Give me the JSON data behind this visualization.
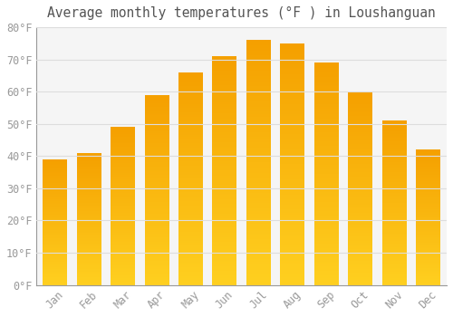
{
  "title": "Average monthly temperatures (°F ) in Loushanguan",
  "months": [
    "Jan",
    "Feb",
    "Mar",
    "Apr",
    "May",
    "Jun",
    "Jul",
    "Aug",
    "Sep",
    "Oct",
    "Nov",
    "Dec"
  ],
  "values": [
    39,
    41,
    49,
    59,
    66,
    71,
    76,
    75,
    69,
    60,
    51,
    42
  ],
  "bar_color_bottom": "#FFD020",
  "bar_color_top": "#F5A000",
  "background_color": "#FFFFFF",
  "plot_bg_color": "#F5F5F5",
  "grid_color": "#DDDDDD",
  "text_color": "#999999",
  "title_color": "#555555",
  "ylim": [
    0,
    80
  ],
  "yticks": [
    0,
    10,
    20,
    30,
    40,
    50,
    60,
    70,
    80
  ],
  "ylabel_suffix": "°F",
  "title_fontsize": 10.5,
  "tick_fontsize": 8.5,
  "bar_width": 0.7
}
